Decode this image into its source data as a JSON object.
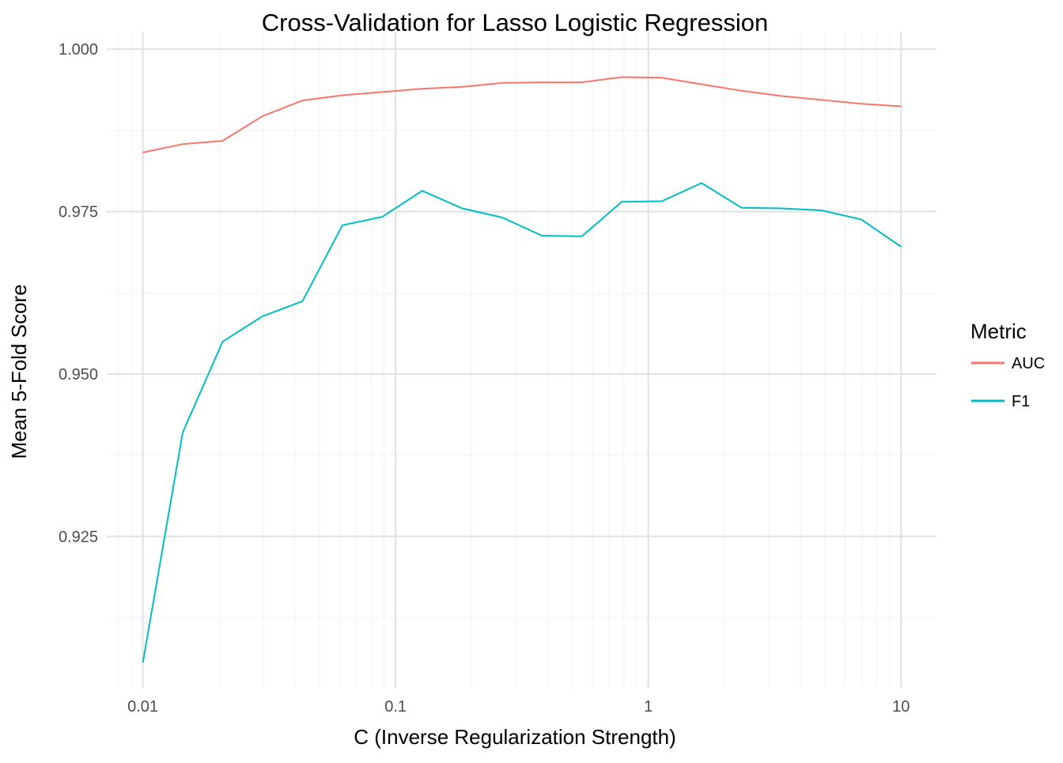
{
  "chart_data": {
    "type": "line",
    "title": "Cross-Validation for Lasso Logistic Regression",
    "xlabel": "C (Inverse Regularization Strength)",
    "ylabel": "Mean 5-Fold Score",
    "xscale": "log10",
    "xlim": [
      0.0072,
      13.8
    ],
    "ylim": [
      0.9017,
      1.0027
    ],
    "xticks": [
      0.01,
      0.1,
      1,
      10
    ],
    "xtick_labels": [
      "0.01",
      "0.1",
      "1",
      "10"
    ],
    "yticks": [
      0.925,
      0.95,
      0.975,
      1.0
    ],
    "ytick_labels": [
      "0.925",
      "0.950",
      "0.975",
      "1.000"
    ],
    "grid": true,
    "legend": {
      "title": "Metric",
      "placement": "right"
    },
    "x": [
      0.01,
      0.01438,
      0.02069,
      0.02976,
      0.04281,
      0.06158,
      0.08859,
      0.1274,
      0.1833,
      0.2637,
      0.3793,
      0.5456,
      0.7848,
      1.129,
      1.624,
      2.336,
      3.36,
      4.833,
      6.952,
      10.0
    ],
    "series": [
      {
        "name": "AUC",
        "color": "#F8766D",
        "values": [
          0.9841,
          0.9854,
          0.9859,
          0.9897,
          0.9921,
          0.9929,
          0.9934,
          0.9939,
          0.9942,
          0.9948,
          0.9949,
          0.9949,
          0.9957,
          0.9956,
          0.9946,
          0.9936,
          0.9928,
          0.9922,
          0.9916,
          0.9912
        ]
      },
      {
        "name": "F1",
        "color": "#00BFC4",
        "values": [
          0.9056,
          0.941,
          0.955,
          0.9589,
          0.9612,
          0.9729,
          0.9742,
          0.9782,
          0.9755,
          0.9741,
          0.9713,
          0.9712,
          0.9765,
          0.9766,
          0.9794,
          0.9756,
          0.9755,
          0.9752,
          0.9738,
          0.9696
        ]
      }
    ]
  }
}
